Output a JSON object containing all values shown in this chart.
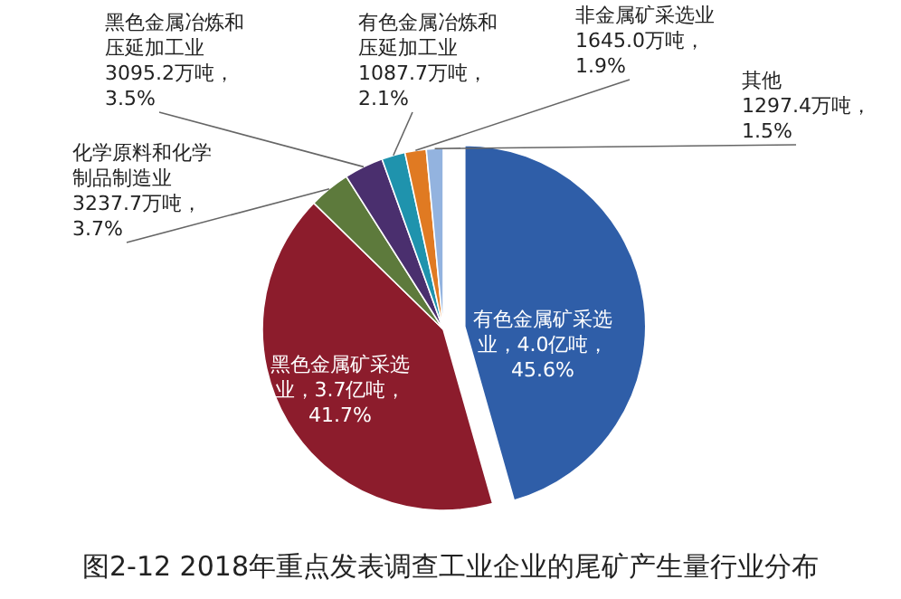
{
  "chart_data": {
    "type": "pie",
    "title": "图2-12 2018年重点发表调查工业企业的尾矿产生量行业分布",
    "categories": [
      "有色金属矿采选业",
      "黑色金属矿采选业",
      "化学原料和化学制品制造业",
      "黑色金属冶炼和压延加工业",
      "有色金属冶炼和压延加工业",
      "非金属矿采选业",
      "其他"
    ],
    "values": [
      45.6,
      41.7,
      3.7,
      3.5,
      2.1,
      1.9,
      1.5
    ],
    "colors": [
      "#2f5ea8",
      "#8c1c2c",
      "#5d7a3c",
      "#4a2f6e",
      "#1f93ad",
      "#e07a22",
      "#93b3df"
    ],
    "value_labels": [
      "，4.0亿吨，45.6%",
      "，3.7亿吨，41.7%",
      "3237.7万吨，3.7%",
      "3095.2万吨，3.5%",
      "1087.7万吨，2.1%",
      "1645.0万吨，1.9%",
      "1297.4万吨，1.5%"
    ]
  }
}
